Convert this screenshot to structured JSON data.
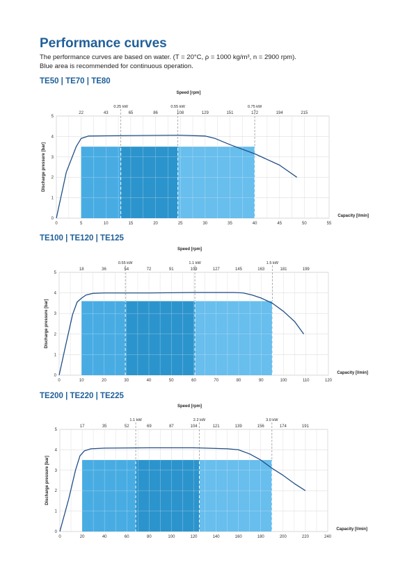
{
  "page": {
    "title": "Performance curves",
    "intro_line1": "The performance curves are based on water. (T = 20°C, ρ = 1000 kg/m³, n = 2900 rpm).",
    "intro_line2": "Blue area is recommended for continuous operation."
  },
  "chart_data": [
    {
      "type": "line",
      "title": "TE50 | TE70 | TE80",
      "xlabel": "Capacity [l/min]",
      "ylabel": "Discharge pressure [bar]",
      "top_axis_label": "Speed [rpm]",
      "xlim": [
        0,
        55
      ],
      "ylim": [
        0,
        5
      ],
      "x_ticks": [
        0,
        5,
        10,
        15,
        20,
        25,
        30,
        35,
        40,
        45,
        50,
        55
      ],
      "y_ticks": [
        0,
        1,
        2,
        3,
        4,
        5
      ],
      "speed_ticks": [
        {
          "x": 5,
          "label": "22"
        },
        {
          "x": 10,
          "label": "43"
        },
        {
          "x": 15,
          "label": "65"
        },
        {
          "x": 20,
          "label": "86"
        },
        {
          "x": 25,
          "label": "108"
        },
        {
          "x": 30,
          "label": "129"
        },
        {
          "x": 35,
          "label": "151"
        },
        {
          "x": 40,
          "label": "172"
        },
        {
          "x": 45,
          "label": "194"
        },
        {
          "x": 50,
          "label": "215"
        }
      ],
      "power_markers": [
        {
          "x": 13,
          "label": "0.25 kW"
        },
        {
          "x": 24.5,
          "label": "0.55 kW"
        },
        {
          "x": 40,
          "label": "0.75 kW"
        }
      ],
      "operating_area": {
        "x_start": 5,
        "x_end": 40,
        "y_top": 3.5
      },
      "series": [
        {
          "points": [
            [
              0,
              0
            ],
            [
              2,
              2.25
            ],
            [
              4,
              3.5
            ],
            [
              5,
              3.9
            ],
            [
              6.5,
              4.02
            ],
            [
              10,
              4.03
            ],
            [
              20,
              4.05
            ],
            [
              25,
              4.06
            ],
            [
              30,
              4.02
            ],
            [
              32,
              3.9
            ],
            [
              35,
              3.6
            ],
            [
              40,
              3.15
            ],
            [
              45,
              2.6
            ],
            [
              48.5,
              2.0
            ]
          ]
        }
      ]
    },
    {
      "type": "line",
      "title": "TE100 | TE120 | TE125",
      "xlabel": "Capacity [l/min]",
      "ylabel": "Discharge pressure [bar]",
      "top_axis_label": "Speed [rpm]",
      "xlim": [
        0,
        120
      ],
      "ylim": [
        0,
        5
      ],
      "x_ticks": [
        0,
        10,
        20,
        30,
        40,
        50,
        60,
        70,
        80,
        90,
        100,
        110,
        120
      ],
      "y_ticks": [
        0,
        1,
        2,
        3,
        4,
        5
      ],
      "speed_ticks": [
        {
          "x": 10,
          "label": "18"
        },
        {
          "x": 20,
          "label": "36"
        },
        {
          "x": 30,
          "label": "54"
        },
        {
          "x": 40,
          "label": "72"
        },
        {
          "x": 50,
          "label": "91"
        },
        {
          "x": 60,
          "label": "109"
        },
        {
          "x": 70,
          "label": "127"
        },
        {
          "x": 80,
          "label": "145"
        },
        {
          "x": 90,
          "label": "163"
        },
        {
          "x": 100,
          "label": "181"
        },
        {
          "x": 110,
          "label": "199"
        }
      ],
      "power_markers": [
        {
          "x": 29.5,
          "label": "0.55 kW"
        },
        {
          "x": 60.5,
          "label": "1.1 kW"
        },
        {
          "x": 95,
          "label": "1.5 kW"
        }
      ],
      "operating_area": {
        "x_start": 10,
        "x_end": 95,
        "y_top": 3.6
      },
      "series": [
        {
          "points": [
            [
              0,
              0
            ],
            [
              3,
              1.5
            ],
            [
              6,
              2.95
            ],
            [
              8,
              3.55
            ],
            [
              10,
              3.75
            ],
            [
              12,
              3.9
            ],
            [
              15,
              3.98
            ],
            [
              20,
              4.0
            ],
            [
              40,
              4.0
            ],
            [
              60,
              4.02
            ],
            [
              70,
              4.02
            ],
            [
              78,
              4.02
            ],
            [
              82,
              4.0
            ],
            [
              86,
              3.9
            ],
            [
              90,
              3.75
            ],
            [
              95,
              3.5
            ],
            [
              100,
              3.1
            ],
            [
              105,
              2.6
            ],
            [
              109,
              2.0
            ]
          ]
        }
      ]
    },
    {
      "type": "line",
      "title": "TE200 | TE220 | TE225",
      "xlabel": "Capacity [l/min]",
      "ylabel": "Discharge pressure [bar]",
      "top_axis_label": "Speed [rpm]",
      "xlim": [
        0,
        240
      ],
      "ylim": [
        0,
        5
      ],
      "x_ticks": [
        0,
        20,
        40,
        60,
        80,
        100,
        120,
        140,
        160,
        180,
        200,
        220,
        240
      ],
      "y_ticks": [
        0,
        1,
        2,
        3,
        4,
        5
      ],
      "speed_ticks": [
        {
          "x": 20,
          "label": "17"
        },
        {
          "x": 40,
          "label": "35"
        },
        {
          "x": 60,
          "label": "52"
        },
        {
          "x": 80,
          "label": "69"
        },
        {
          "x": 100,
          "label": "87"
        },
        {
          "x": 120,
          "label": "104"
        },
        {
          "x": 140,
          "label": "121"
        },
        {
          "x": 160,
          "label": "139"
        },
        {
          "x": 180,
          "label": "156"
        },
        {
          "x": 200,
          "label": "174"
        },
        {
          "x": 220,
          "label": "191"
        }
      ],
      "power_markers": [
        {
          "x": 68,
          "label": "1.1 kW"
        },
        {
          "x": 125,
          "label": "2.2 kW"
        },
        {
          "x": 190,
          "label": "3.0 kW"
        }
      ],
      "operating_area": {
        "x_start": 20,
        "x_end": 190,
        "y_top": 3.5
      },
      "series": [
        {
          "points": [
            [
              0,
              0
            ],
            [
              8,
              1.6
            ],
            [
              14,
              3.0
            ],
            [
              18,
              3.7
            ],
            [
              22,
              3.95
            ],
            [
              28,
              4.05
            ],
            [
              40,
              4.08
            ],
            [
              80,
              4.1
            ],
            [
              120,
              4.1
            ],
            [
              150,
              4.05
            ],
            [
              160,
              4.0
            ],
            [
              170,
              3.8
            ],
            [
              180,
              3.5
            ],
            [
              190,
              3.1
            ],
            [
              200,
              2.75
            ],
            [
              210,
              2.35
            ],
            [
              220,
              2.0
            ]
          ]
        }
      ]
    }
  ]
}
